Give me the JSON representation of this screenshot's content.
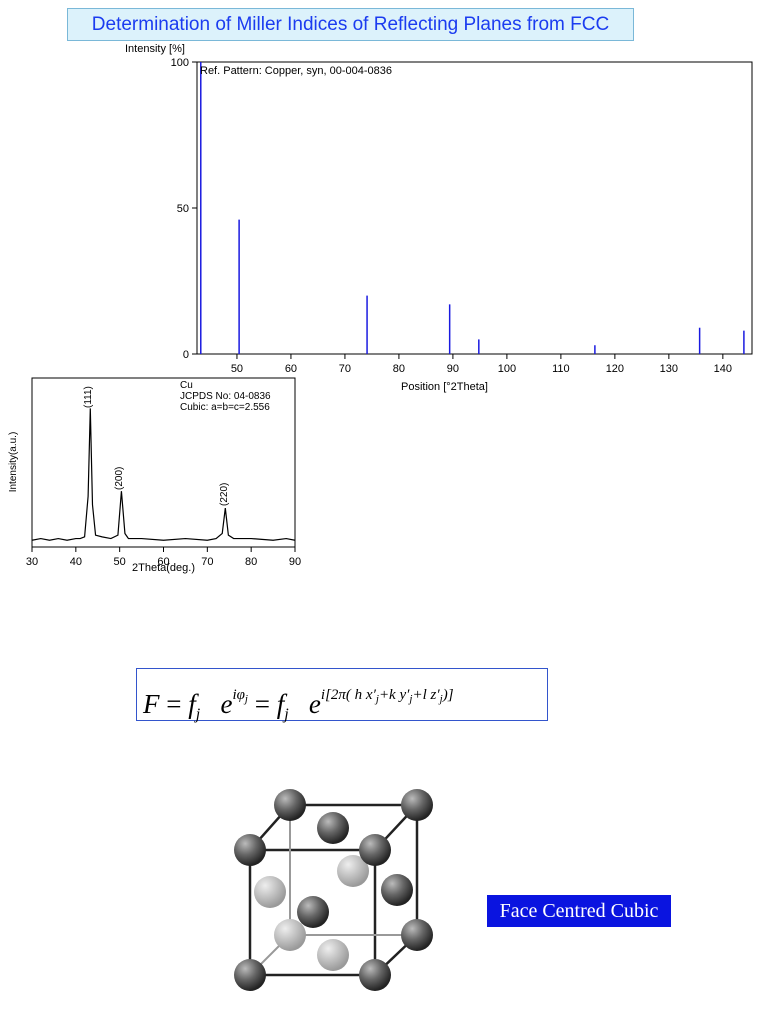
{
  "title": "Determination of Miller Indices of Reflecting Planes from FCC",
  "chart_data": [
    {
      "type": "stem",
      "annotation": "Ref. Pattern: Copper, syn, 00-004-0836",
      "y_label": "Intensity [%]",
      "x_label": "Position [°2Theta]",
      "x": [
        43.3,
        50.4,
        74.1,
        89.4,
        94.8,
        116.3,
        135.7,
        143.9
      ],
      "values": [
        100,
        46,
        20,
        17,
        5,
        3,
        9,
        8
      ],
      "color": "#1a1ae0",
      "xlim": [
        42.6,
        145.4
      ],
      "xticks": [
        50,
        60,
        70,
        80,
        90,
        100,
        110,
        120,
        130,
        140
      ],
      "ylim": [
        0,
        100
      ],
      "yticks": [
        0,
        50,
        100
      ]
    },
    {
      "type": "line",
      "annotations": [
        "Cu",
        "JCPDS No: 04-0836",
        "Cubic: a=b=c=2.556"
      ],
      "peak_labels": [
        "(111)",
        "(200)",
        "(220)"
      ],
      "y_label": "Intensity(a.u.)",
      "x_label": "2Theta(deg.)",
      "color": "#000000",
      "x": [
        30,
        32,
        34,
        36,
        38,
        40,
        41,
        42,
        42.8,
        43.3,
        43.8,
        44.5,
        46,
        48,
        49.6,
        50.4,
        51.2,
        52,
        55,
        60,
        65,
        70,
        72,
        73.4,
        74.1,
        74.8,
        76,
        80,
        85,
        88,
        90
      ],
      "values": [
        4,
        5,
        4,
        5,
        4,
        5,
        5,
        6,
        30,
        82,
        25,
        7,
        6,
        5,
        7,
        33,
        8,
        5,
        5,
        4,
        5,
        4,
        5,
        8,
        23,
        7,
        5,
        5,
        4,
        5,
        4
      ],
      "xlim": [
        30,
        90
      ],
      "xticks": [
        30,
        40,
        50,
        60,
        70,
        80,
        90
      ],
      "ylim": [
        0,
        100
      ]
    }
  ],
  "equation": [
    "F",
    "=",
    "f",
    "j",
    "e",
    "iφ",
    "j",
    "=",
    "f",
    "j",
    "e",
    "i[2π( h x′",
    "j",
    "+k y′",
    "j",
    "+l z′",
    "j",
    ")]"
  ],
  "diagram_label": "Face Centred Cubic"
}
